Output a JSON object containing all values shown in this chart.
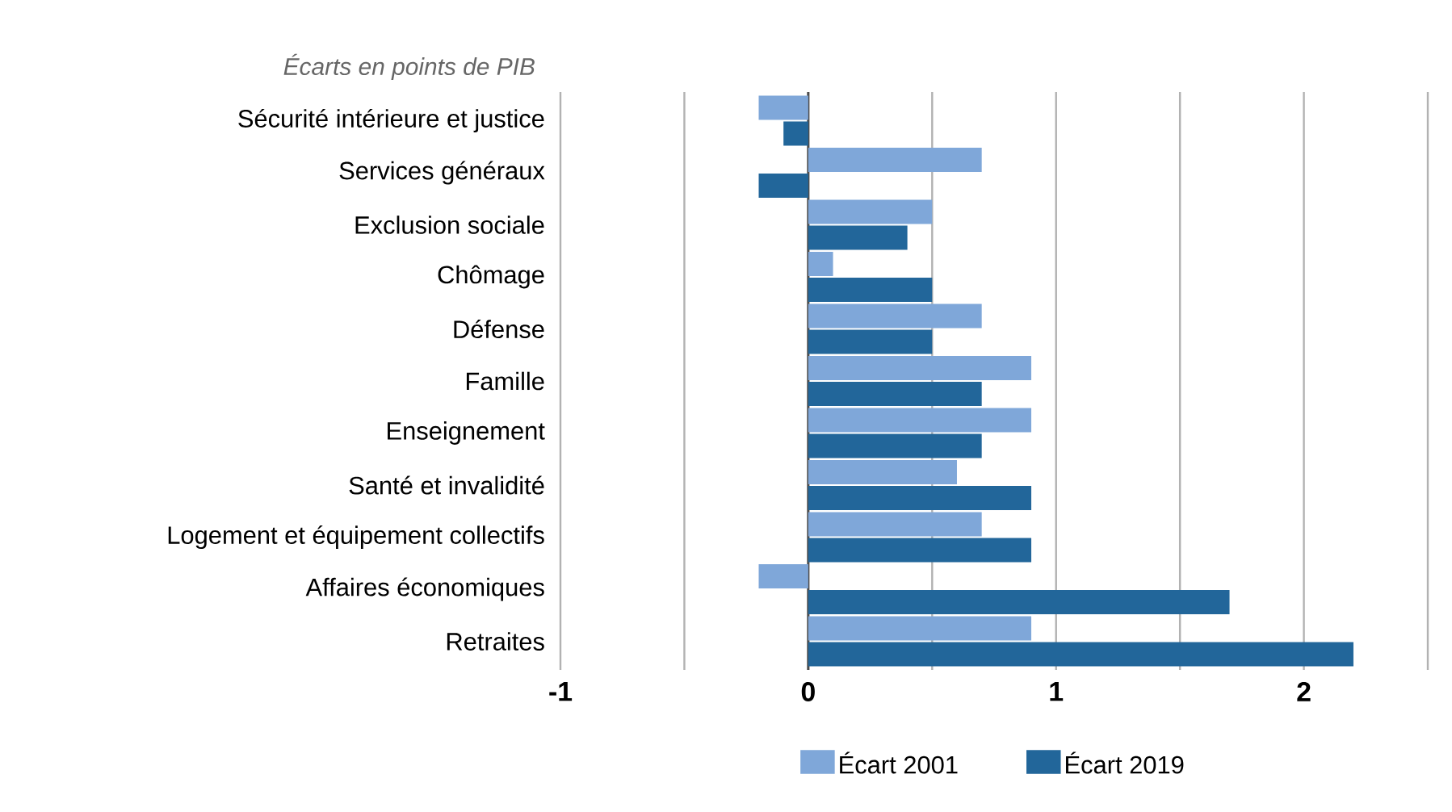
{
  "chart_data": {
    "type": "bar",
    "orientation": "horizontal",
    "ylabel": "Écarts en points de PIB",
    "categories": [
      "Sécurité intérieure et justice",
      "Services généraux",
      "Exclusion sociale",
      "Chômage",
      "Défense",
      "Famille",
      "Enseignement",
      "Santé et invalidité",
      "Logement et équipement collectifs",
      "Affaires économiques",
      "Retraites"
    ],
    "series": [
      {
        "name": "Écart 2001",
        "color": "#7fa7d9",
        "values": [
          -0.2,
          0.7,
          0.5,
          0.1,
          0.7,
          0.9,
          0.9,
          0.6,
          0.7,
          -0.2,
          0.9
        ]
      },
      {
        "name": "Écart 2019",
        "color": "#22669a",
        "values": [
          -0.1,
          -0.2,
          0.4,
          0.5,
          0.5,
          0.7,
          0.7,
          0.9,
          0.9,
          1.7,
          2.2
        ]
      }
    ],
    "xlim": [
      -1,
      2.5
    ],
    "xticks": [
      -1,
      {
        "value": -0.5,
        "label": null
      },
      0,
      {
        "value": 0.5,
        "label": null
      },
      1,
      {
        "value": 1.5,
        "label": null
      },
      2,
      {
        "value": 2.5,
        "label": null
      }
    ],
    "grid": "x",
    "legend": "bottom"
  }
}
